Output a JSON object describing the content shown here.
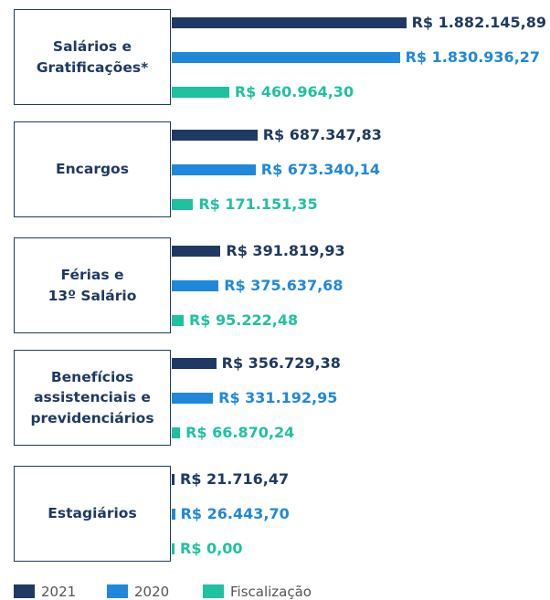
{
  "chart_data": {
    "type": "bar",
    "orientation": "horizontal",
    "categories": [
      "Salários e\nGratificações*",
      "Encargos",
      "Férias e\n13º Salário",
      "Benefícios\nassistenciais e\nprevidenciários",
      "Estagiários"
    ],
    "series": [
      {
        "name": "2021",
        "color": "#1e3a64",
        "values": [
          1882145.89,
          687347.83,
          391819.93,
          356729.38,
          21716.47
        ],
        "value_labels": [
          "R$ 1.882.145,89",
          "R$ 687.347,83",
          "R$ 391.819,93",
          "R$ 356.729,38",
          "R$ 21.716,47"
        ]
      },
      {
        "name": "2020",
        "color": "#1f88dd",
        "values": [
          1830936.27,
          673340.14,
          375637.68,
          331192.95,
          26443.7
        ],
        "value_labels": [
          "R$ 1.830.936,27",
          "R$ 673.340,14",
          "R$ 375.637,68",
          "R$ 331.192,95",
          "R$ 26.443,70"
        ]
      },
      {
        "name": "Fiscalização",
        "color": "#1ec2a0",
        "values": [
          460964.3,
          171151.35,
          95222.48,
          66870.24,
          0.0
        ],
        "value_labels": [
          "R$ 460.964,30",
          "R$ 171.151,35",
          "R$ 95.222,48",
          "R$ 66.870,24",
          "R$ 0,00"
        ]
      }
    ],
    "xlim": [
      0,
      1900000
    ],
    "legend": "bottom"
  }
}
